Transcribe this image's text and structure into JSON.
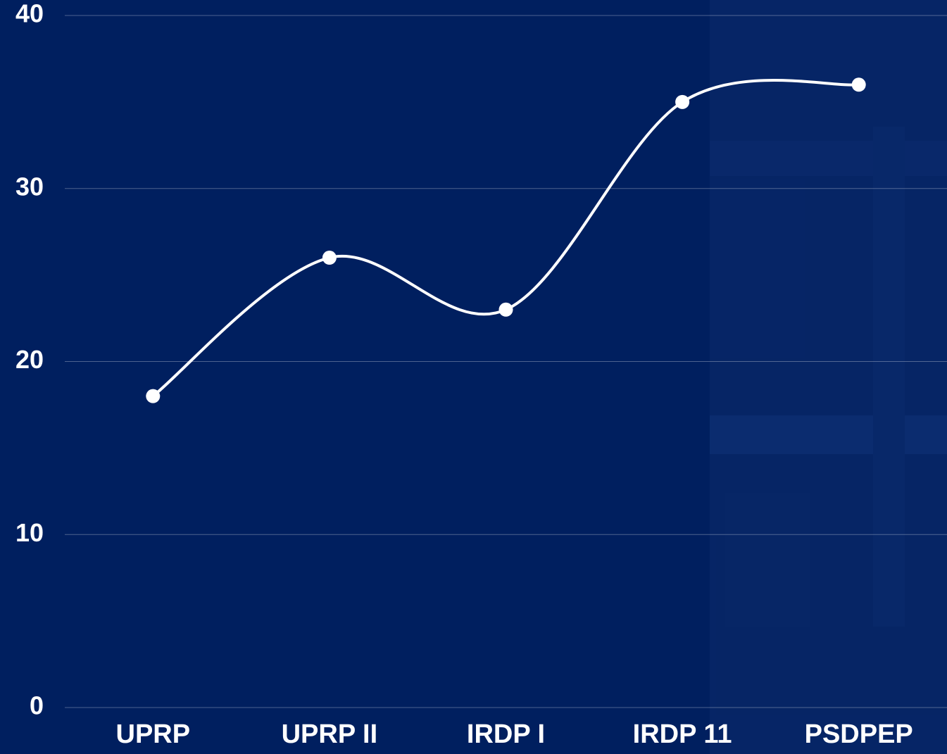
{
  "chart_data": {
    "type": "line",
    "categories": [
      "UPRP",
      "UPRP II",
      "IRDP I",
      "IRDP 11",
      "PSDPEP"
    ],
    "series": [
      {
        "color": "#ffffff",
        "values": [
          18,
          26,
          23,
          35,
          36
        ]
      }
    ],
    "ylim": [
      0,
      40
    ],
    "yticks": [
      0,
      10,
      20,
      30,
      40
    ],
    "grid": true
  }
}
